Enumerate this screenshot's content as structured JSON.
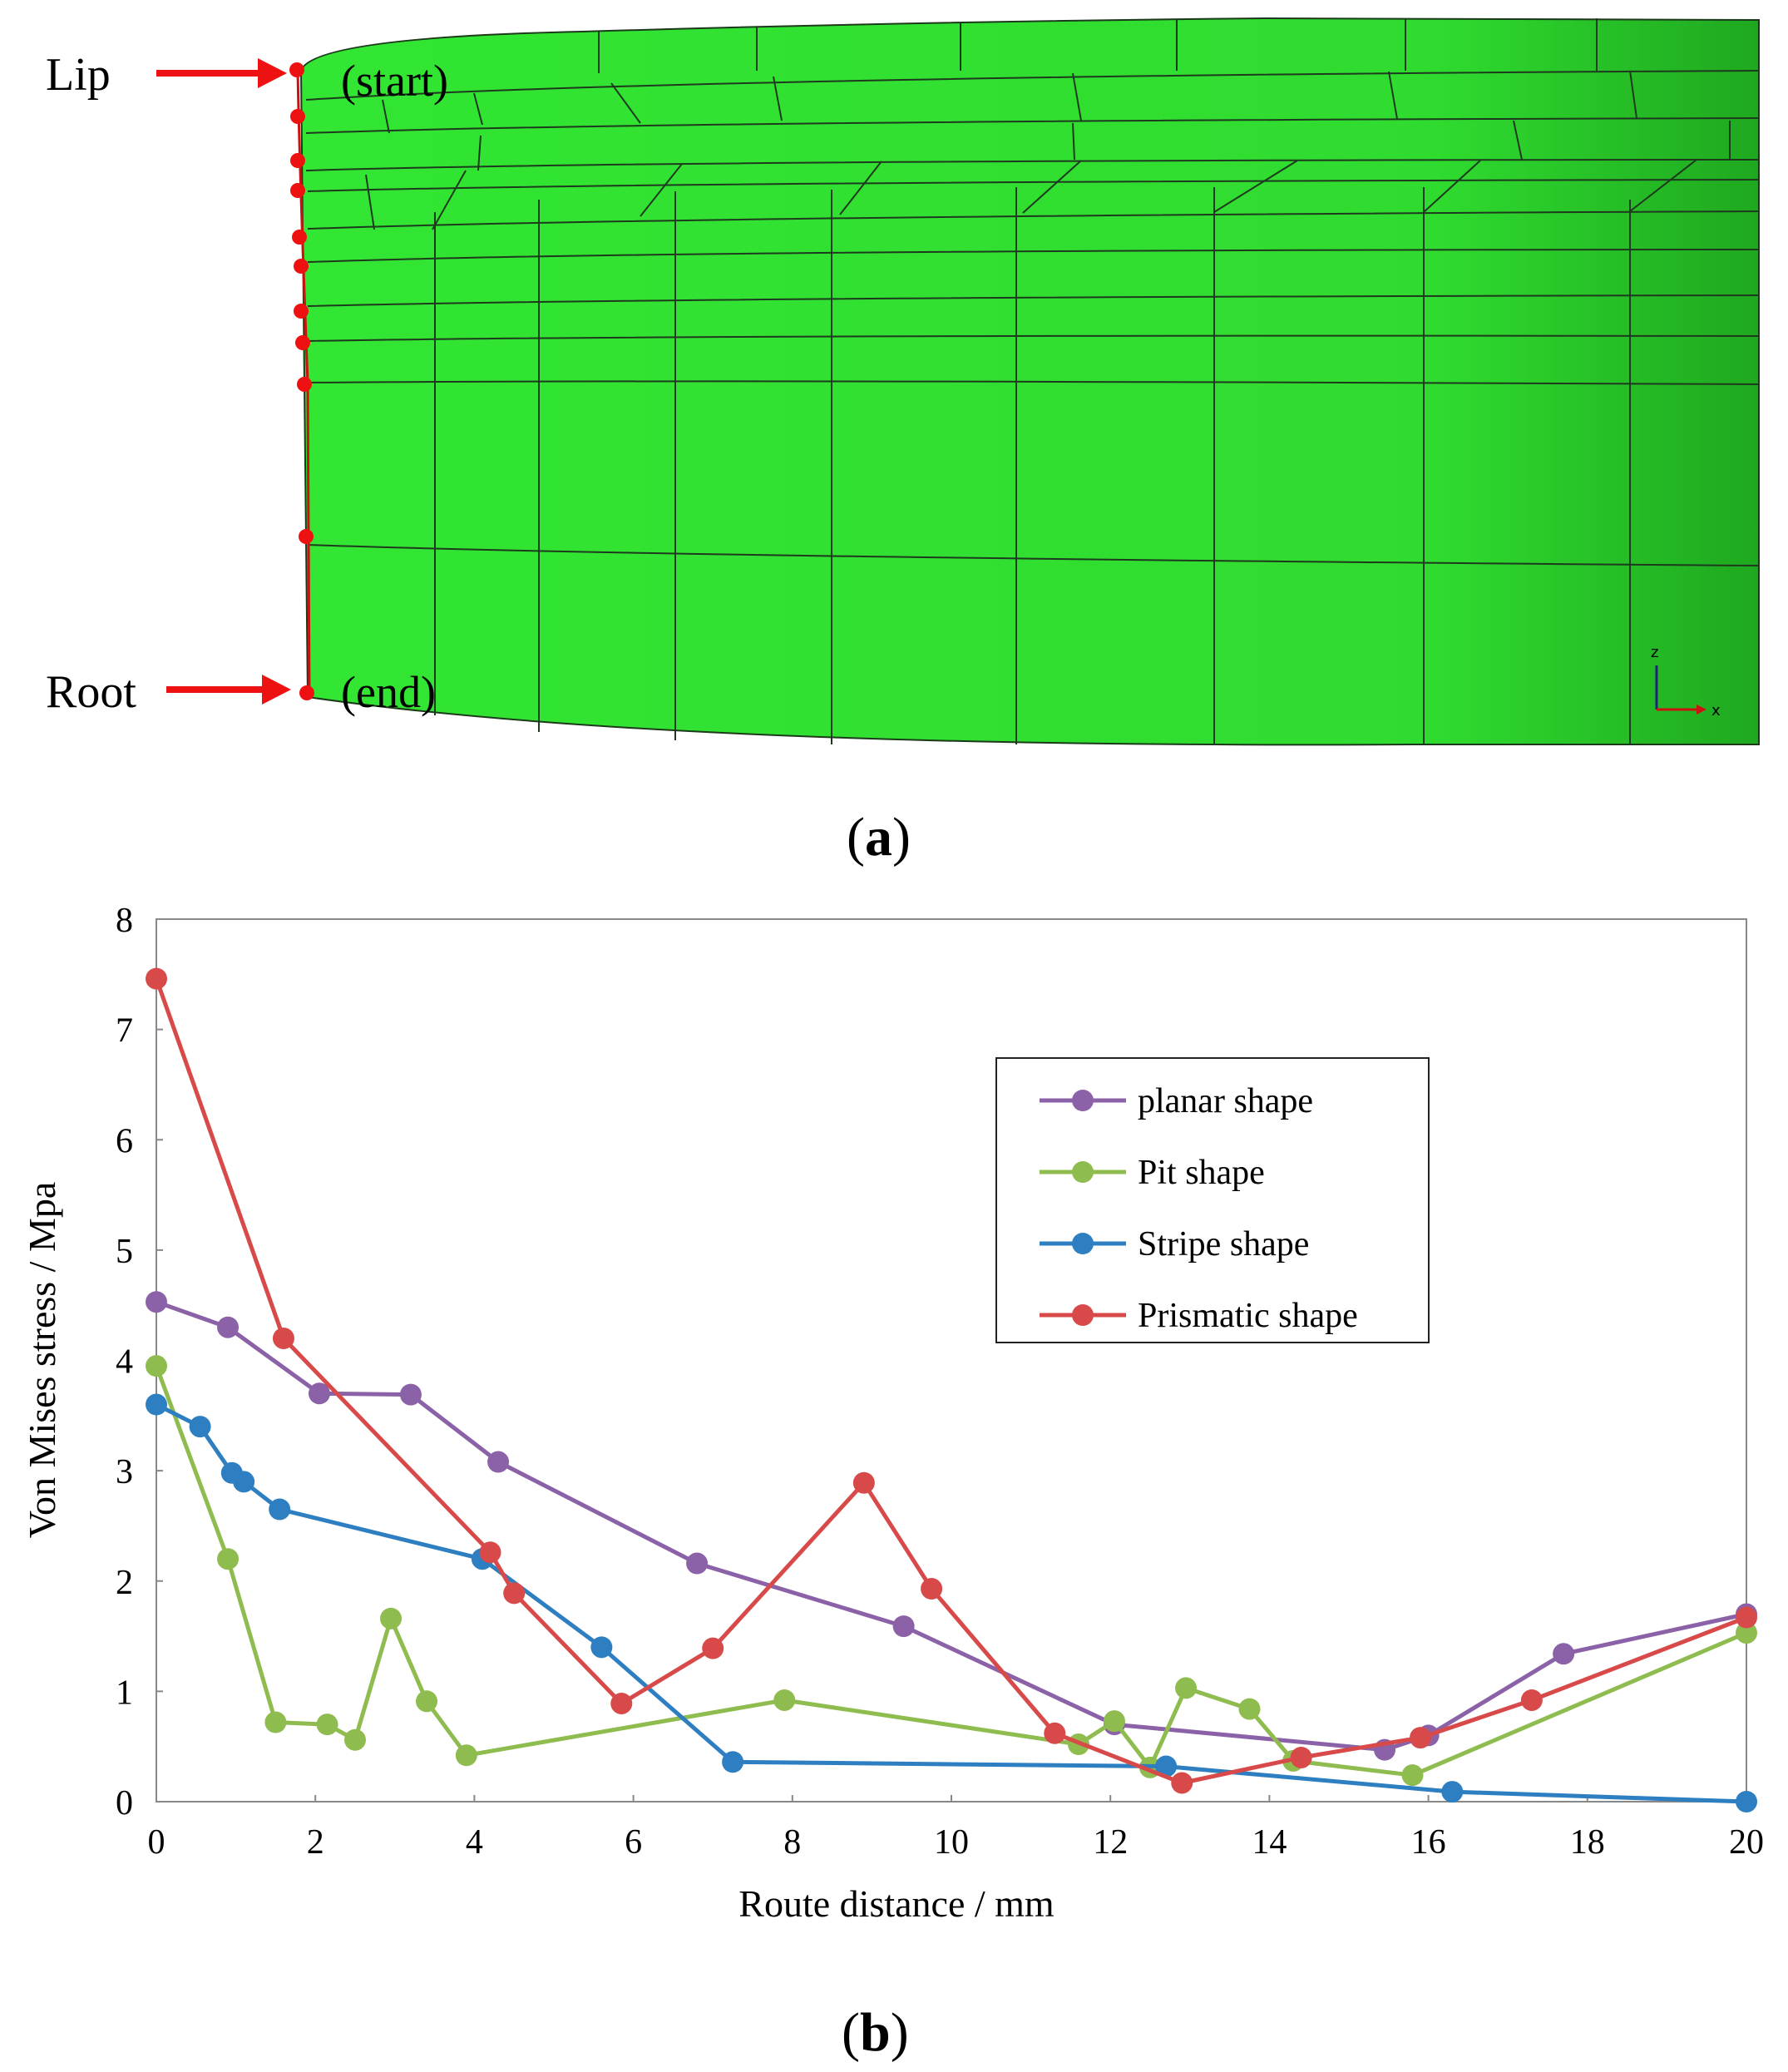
{
  "figure": {
    "panel_a_label": "a",
    "panel_b_label": "b",
    "model": {
      "lip_label": "Lip",
      "root_label": "Root",
      "start_label": "(start)",
      "end_label": "(end)",
      "axis_z": "z",
      "axis_x": "x",
      "mesh_color": "#33e633",
      "marker_color": "#ee1111"
    }
  },
  "chart_data": {
    "type": "line",
    "title": "",
    "xlabel": "Route distance / mm",
    "ylabel": "Von Mises stress / Mpa",
    "xlim": [
      0,
      20
    ],
    "ylim": [
      0,
      8
    ],
    "xticks": [
      0,
      2,
      4,
      6,
      8,
      10,
      12,
      14,
      16,
      18,
      20
    ],
    "yticks": [
      0,
      1,
      2,
      3,
      4,
      5,
      6,
      7,
      8
    ],
    "grid": false,
    "legend_position": "upper-right",
    "series": [
      {
        "name": "planar shape",
        "color": "#8b62a8",
        "x": [
          0,
          0.9,
          2.05,
          3.2,
          4.3,
          6.8,
          9.4,
          12.05,
          15.45,
          16.0,
          17.7,
          20
        ],
        "y": [
          4.53,
          4.3,
          3.7,
          3.69,
          3.08,
          2.16,
          1.59,
          0.7,
          0.47,
          0.6,
          1.34,
          1.7
        ]
      },
      {
        "name": "Pit shape",
        "color": "#8fbc4f",
        "x": [
          0,
          0.9,
          1.5,
          2.15,
          2.5,
          2.95,
          3.4,
          3.9,
          7.9,
          11.6,
          12.05,
          12.5,
          12.95,
          13.75,
          14.3,
          15.8,
          20
        ],
        "y": [
          3.95,
          2.2,
          0.72,
          0.7,
          0.56,
          1.66,
          0.91,
          0.42,
          0.92,
          0.52,
          0.73,
          0.31,
          1.03,
          0.84,
          0.37,
          0.24,
          1.53
        ]
      },
      {
        "name": "Stripe shape",
        "color": "#2e7fc1",
        "x": [
          0,
          0.55,
          0.95,
          1.1,
          1.55,
          4.1,
          5.6,
          7.25,
          12.7,
          16.3,
          20
        ],
        "y": [
          3.6,
          3.4,
          2.98,
          2.9,
          2.65,
          2.2,
          1.4,
          0.36,
          0.32,
          0.09,
          0.0
        ]
      },
      {
        "name": "Prismatic shape",
        "color": "#d84a4a",
        "x": [
          0,
          1.6,
          4.2,
          4.5,
          5.85,
          7.0,
          8.9,
          9.75,
          11.3,
          12.9,
          14.4,
          15.9,
          17.3,
          20
        ],
        "y": [
          7.46,
          4.2,
          2.26,
          1.89,
          0.89,
          1.39,
          2.89,
          1.93,
          0.62,
          0.17,
          0.4,
          0.58,
          0.92,
          1.67
        ]
      }
    ]
  }
}
